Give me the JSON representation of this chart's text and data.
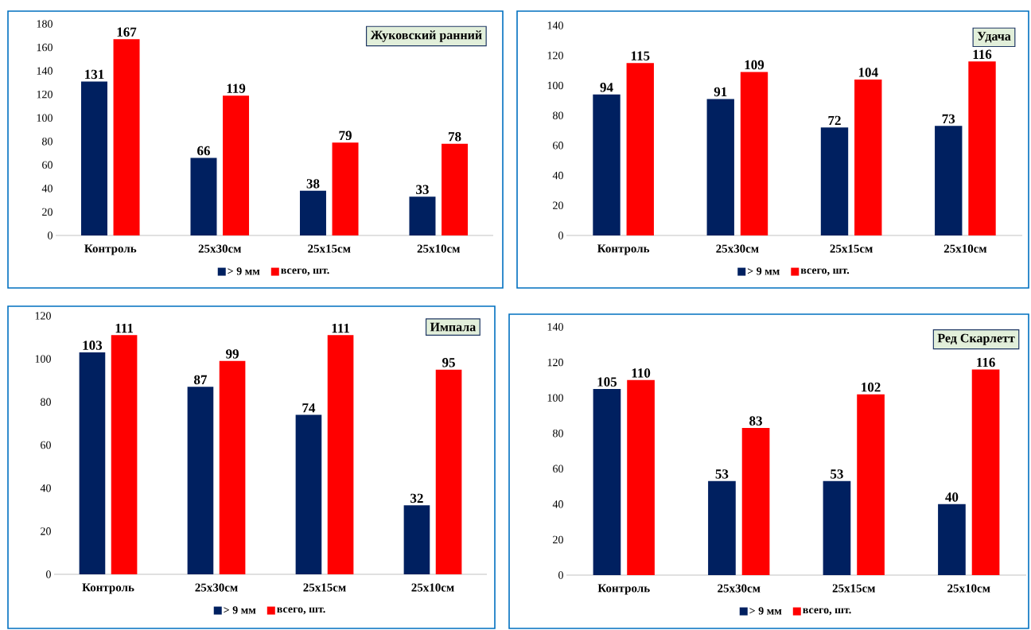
{
  "chart_data": [
    {
      "type": "bar",
      "title": "Жуковский ранний",
      "categories": [
        "Контроль",
        "25х30см",
        "25х15см",
        "25х10см"
      ],
      "series": [
        {
          "name": "> 9 мм",
          "color": "#002060",
          "values": [
            131,
            66,
            38,
            33
          ]
        },
        {
          "name": "всего, шт.",
          "color": "#ff0000",
          "values": [
            167,
            119,
            79,
            78
          ]
        }
      ],
      "ylim": [
        0,
        180
      ],
      "yticks": [
        0,
        20,
        40,
        60,
        80,
        100,
        120,
        140,
        160,
        180
      ],
      "data_labels": true,
      "legend": "bottom"
    },
    {
      "type": "bar",
      "title": "Удача",
      "categories": [
        "Контроль",
        "25х30см",
        "25х15см",
        "25х10см"
      ],
      "series": [
        {
          "name": "> 9 мм",
          "color": "#002060",
          "values": [
            94,
            91,
            72,
            73
          ]
        },
        {
          "name": "всего, шт.",
          "color": "#ff0000",
          "values": [
            115,
            109,
            104,
            116
          ]
        }
      ],
      "ylim": [
        0,
        140
      ],
      "yticks": [
        0,
        20,
        40,
        60,
        80,
        100,
        120,
        140
      ],
      "data_labels": true,
      "legend": "bottom"
    },
    {
      "type": "bar",
      "title": "Импала",
      "categories": [
        "Контроль",
        "25х30см",
        "25х15см",
        "25х10см"
      ],
      "series": [
        {
          "name": "> 9 мм",
          "color": "#002060",
          "values": [
            103,
            87,
            74,
            32
          ]
        },
        {
          "name": "всего, шт.",
          "color": "#ff0000",
          "values": [
            111,
            99,
            111,
            95
          ]
        }
      ],
      "ylim": [
        0,
        120
      ],
      "yticks": [
        0,
        20,
        40,
        60,
        80,
        100,
        120
      ],
      "data_labels": true,
      "legend": "bottom"
    },
    {
      "type": "bar",
      "title": "Ред Скарлетт",
      "categories": [
        "Контроль",
        "25х30см",
        "25х15см",
        "25х10см"
      ],
      "series": [
        {
          "name": "> 9 мм",
          "color": "#002060",
          "values": [
            105,
            53,
            53,
            40
          ]
        },
        {
          "name": "всего, шт.",
          "color": "#ff0000",
          "values": [
            110,
            83,
            102,
            116
          ]
        }
      ],
      "ylim": [
        0,
        140
      ],
      "yticks": [
        0,
        20,
        40,
        60,
        80,
        100,
        120,
        140
      ],
      "data_labels": true,
      "legend": "bottom"
    }
  ]
}
